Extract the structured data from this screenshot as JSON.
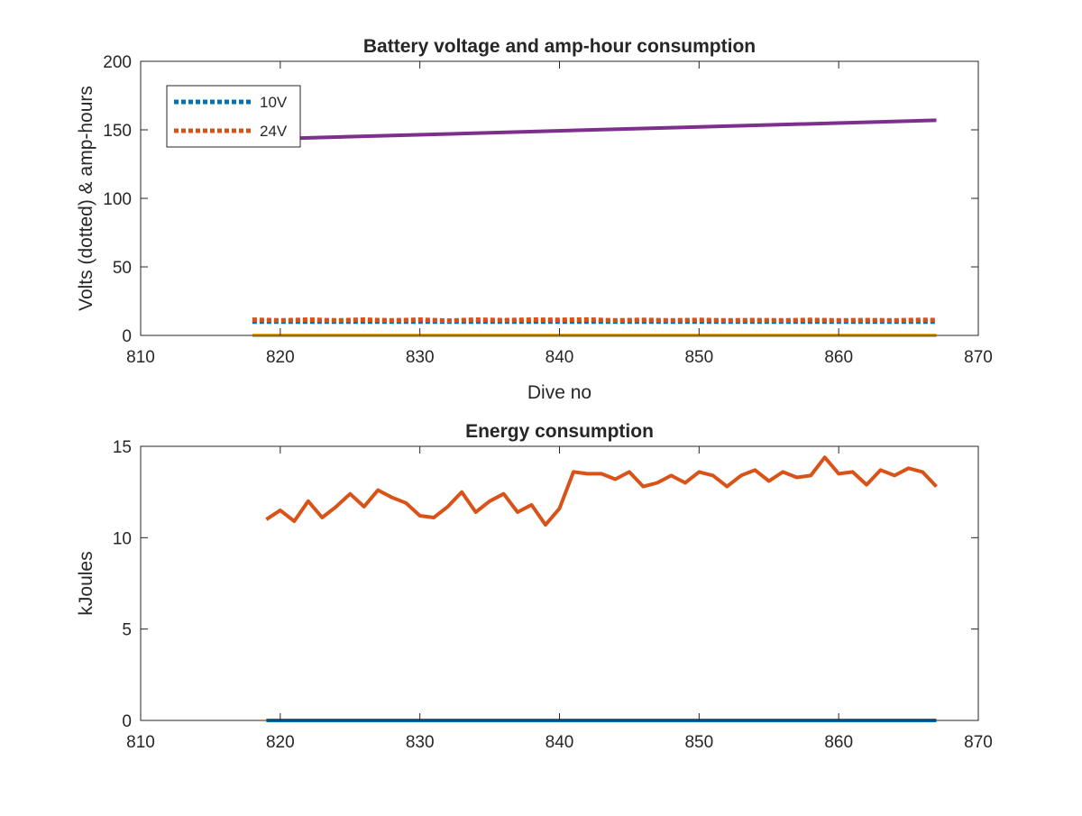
{
  "colors": {
    "blue": "#0072BD",
    "orange": "#D95319",
    "yellow": "#EDB120",
    "purple": "#7E2F8E",
    "axis": "#262626"
  },
  "chart_data": [
    {
      "type": "line",
      "title": "Battery voltage and amp-hour consumption",
      "xlabel": "Dive no",
      "ylabel": "Volts (dotted) & amp-hours",
      "xlim": [
        810,
        870
      ],
      "ylim": [
        0,
        200
      ],
      "xticks": [
        810,
        820,
        830,
        840,
        850,
        860,
        870
      ],
      "yticks": [
        0,
        50,
        100,
        150,
        200
      ],
      "grid": false,
      "legend": {
        "placement": "top-left",
        "entries": [
          "10V",
          "24V"
        ]
      },
      "series": [
        {
          "name": "10V",
          "style": "dotted",
          "color": "#0072BD",
          "x": [
            818,
            867
          ],
          "y": [
            10,
            10
          ]
        },
        {
          "name": "24V",
          "style": "dotted",
          "color": "#D95319",
          "x": [
            818,
            820,
            822,
            824,
            826,
            828,
            830,
            832,
            834,
            836,
            838,
            840,
            842,
            844,
            846,
            848,
            850,
            852,
            854,
            856,
            858,
            860,
            862,
            864,
            866,
            867
          ],
          "y": [
            11.5,
            11,
            11.5,
            11,
            11.5,
            11,
            11.5,
            10.8,
            11.5,
            11.2,
            11.5,
            11.4,
            11.6,
            11,
            11.4,
            11,
            11.3,
            11,
            11.2,
            11,
            11.3,
            11,
            11.2,
            11,
            11.4,
            11.2
          ]
        },
        {
          "style": "solid",
          "color": "#EDB120",
          "x": [
            818,
            867
          ],
          "y": [
            0,
            0
          ]
        },
        {
          "style": "solid",
          "color": "#7E2F8E",
          "x": [
            818,
            867
          ],
          "y": [
            143,
            157
          ]
        }
      ]
    },
    {
      "type": "line",
      "title": "Energy consumption",
      "xlabel": "",
      "ylabel": "kJoules",
      "xlim": [
        810,
        870
      ],
      "ylim": [
        0,
        15
      ],
      "xticks": [
        810,
        820,
        830,
        840,
        850,
        860,
        870
      ],
      "yticks": [
        0,
        5,
        10,
        15
      ],
      "grid": false,
      "series": [
        {
          "style": "solid",
          "color": "#D95319",
          "x": [
            819,
            820,
            821,
            822,
            823,
            824,
            825,
            826,
            827,
            828,
            829,
            830,
            831,
            832,
            833,
            834,
            835,
            836,
            837,
            838,
            839,
            840,
            841,
            842,
            843,
            844,
            845,
            846,
            847,
            848,
            849,
            850,
            851,
            852,
            853,
            854,
            855,
            856,
            857,
            858,
            859,
            860,
            861,
            862,
            863,
            864,
            865,
            866,
            867
          ],
          "y": [
            11.0,
            11.5,
            10.9,
            12.0,
            11.1,
            11.7,
            12.4,
            11.7,
            12.6,
            12.2,
            11.9,
            11.2,
            11.1,
            11.7,
            12.5,
            11.4,
            12.0,
            12.4,
            11.4,
            11.8,
            10.7,
            11.6,
            13.6,
            13.5,
            13.5,
            13.2,
            13.6,
            12.8,
            13.0,
            13.4,
            13.0,
            13.6,
            13.4,
            12.8,
            13.4,
            13.7,
            13.1,
            13.6,
            13.3,
            13.4,
            14.4,
            13.5,
            13.6,
            12.9,
            13.7,
            13.4,
            13.8,
            13.6,
            12.8
          ]
        },
        {
          "style": "solid",
          "color": "#0072BD",
          "x": [
            819,
            867
          ],
          "y": [
            0,
            0
          ]
        }
      ]
    }
  ]
}
